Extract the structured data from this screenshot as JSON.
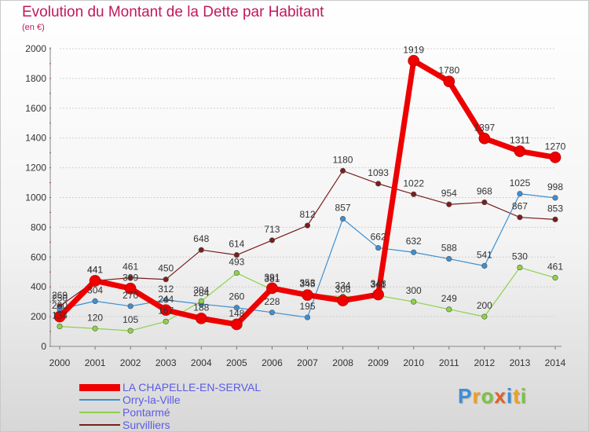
{
  "title": "Evolution du Montant de la Dette par Habitant",
  "subtitle": "(en €)",
  "brand": {
    "letters": [
      "P",
      "r",
      "o",
      "x",
      "i",
      "t",
      "i"
    ],
    "colors": [
      "#3b8ed8",
      "#f0a020",
      "#7dc242",
      "#e0602a",
      "#3b8ed8",
      "#f0a020",
      "#7dc242"
    ]
  },
  "chart_data": {
    "type": "line",
    "x": [
      2000,
      2001,
      2002,
      2003,
      2004,
      2005,
      2006,
      2007,
      2008,
      2009,
      2010,
      2011,
      2012,
      2013,
      2014
    ],
    "ylim": [
      0,
      2000
    ],
    "yticks": [
      0,
      200,
      400,
      600,
      800,
      1000,
      1200,
      1400,
      1600,
      1800,
      2000
    ],
    "grid": true,
    "legend": "bottom-left",
    "series": [
      {
        "name": "Survilliers",
        "color": "#7a1e1e",
        "width": 1.2,
        "values": [
          269,
          441,
          461,
          450,
          648,
          614,
          713,
          812,
          1180,
          1093,
          1022,
          954,
          968,
          867,
          853
        ]
      },
      {
        "name": "Orry-la-Ville",
        "color": "#3d8fd1",
        "width": 1.2,
        "values": [
          250,
          304,
          270,
          312,
          284,
          260,
          228,
          195,
          857,
          662,
          632,
          588,
          541,
          1025,
          998
        ]
      },
      {
        "name": "Pontarmé",
        "color": "#8fd14a",
        "width": 1.2,
        "values": [
          134,
          120,
          105,
          167,
          304,
          493,
          381,
          353,
          334,
          341,
          300,
          249,
          200,
          530,
          461
        ]
      },
      {
        "name": "LA CHAPELLE-EN-SERVAL",
        "color": "#ee0000",
        "width": 7,
        "values": [
          200,
          441,
          389,
          244,
          188,
          148,
          391,
          345,
          308,
          348,
          1919,
          1780,
          1397,
          1311,
          1270
        ]
      }
    ],
    "legend_order": [
      "LA CHAPELLE-EN-SERVAL",
      "Orry-la-Ville",
      "Pontarmé",
      "Survilliers"
    ]
  }
}
